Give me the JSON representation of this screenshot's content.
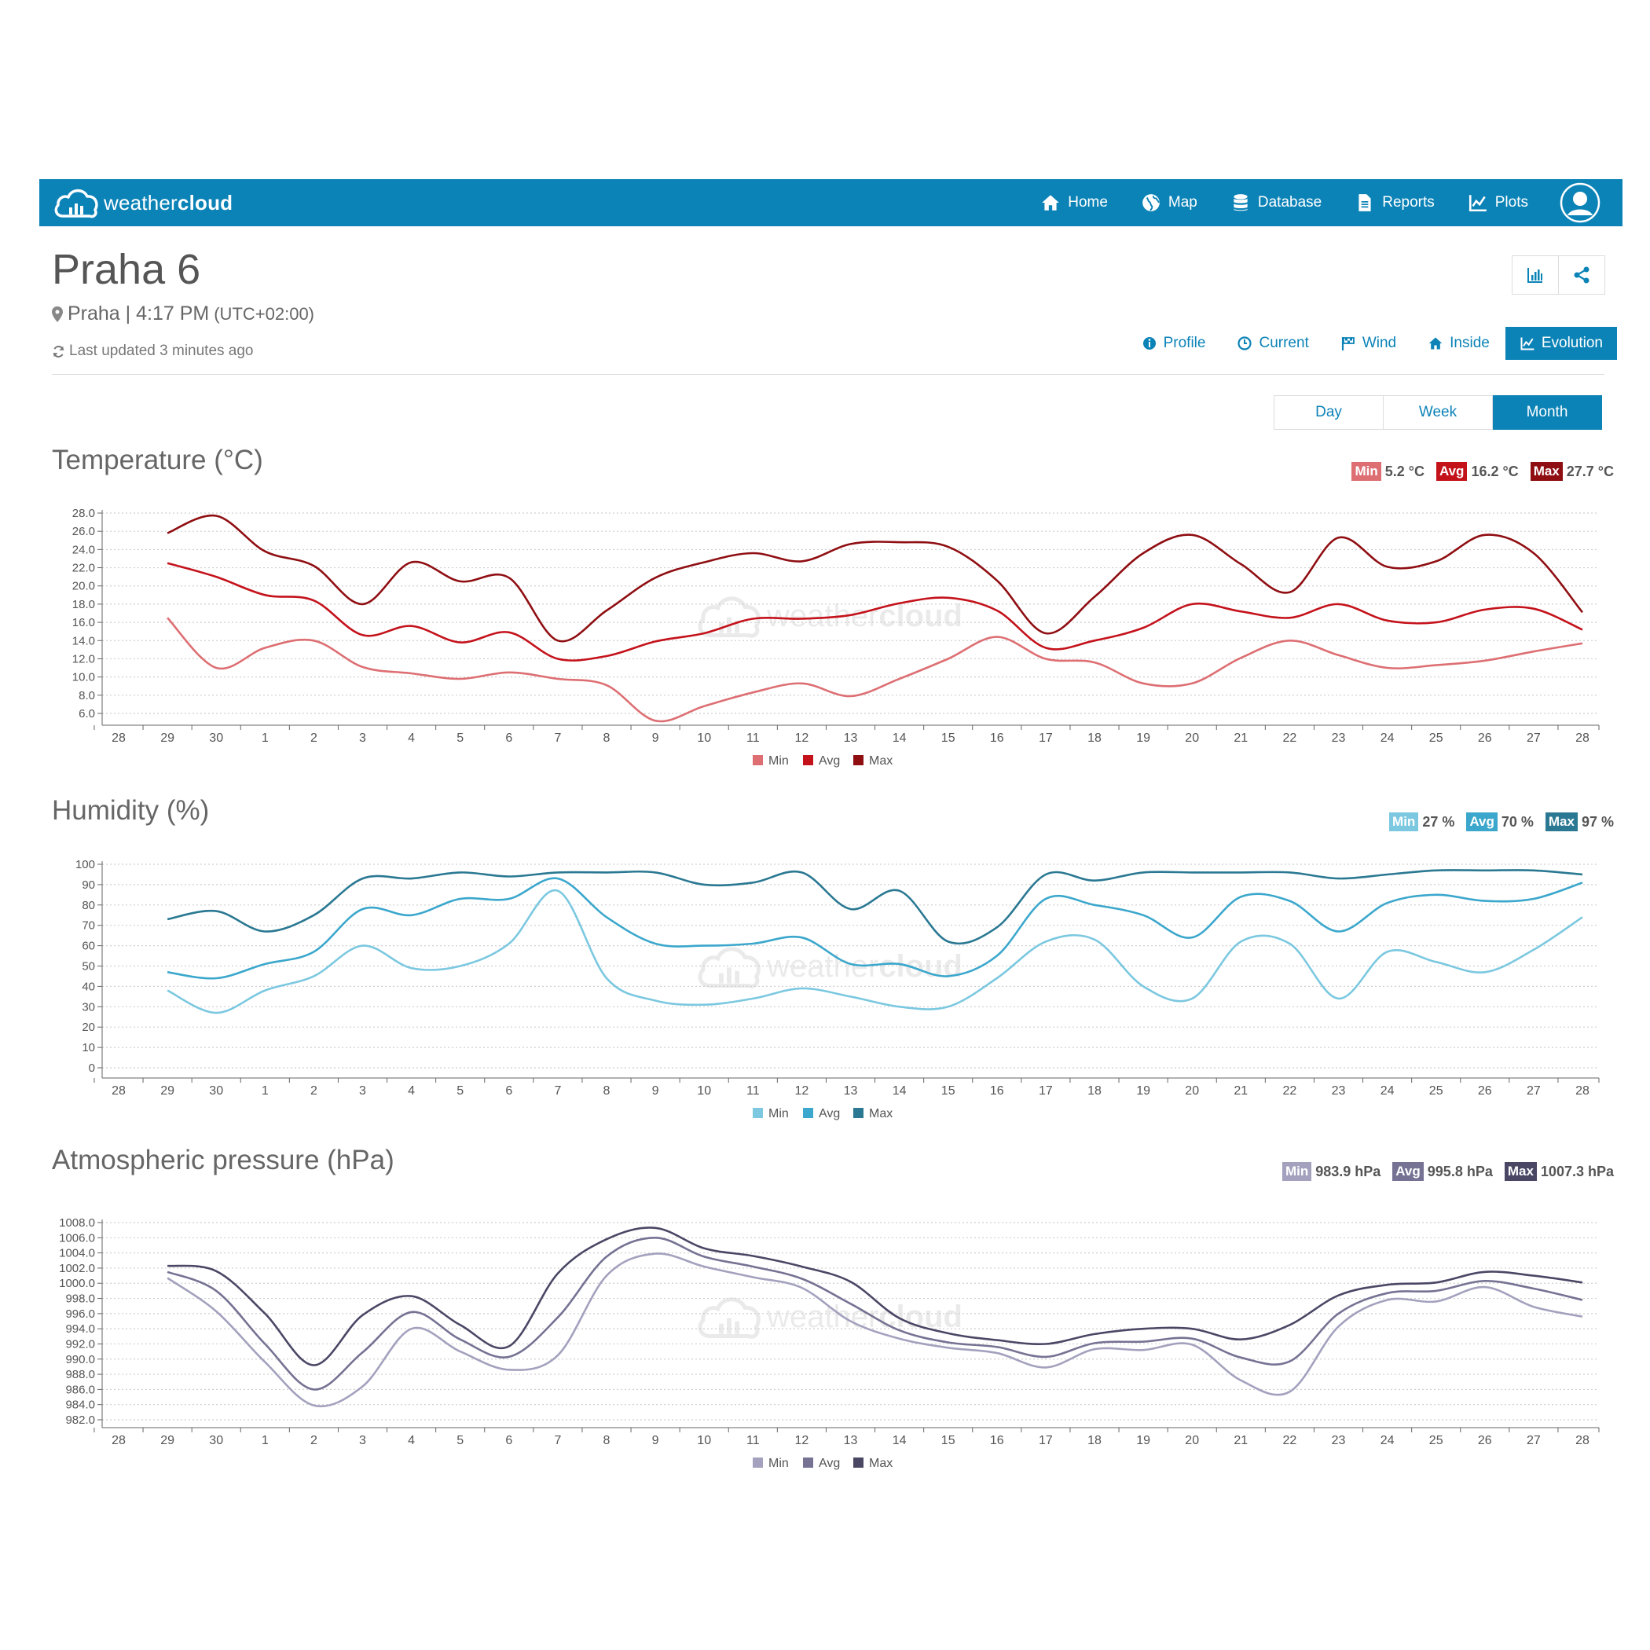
{
  "navbar": {
    "brand_light": "weather",
    "brand_bold": "cloud",
    "items": [
      {
        "label": "Home",
        "icon": "home-icon"
      },
      {
        "label": "Map",
        "icon": "globe-icon"
      },
      {
        "label": "Database",
        "icon": "database-icon"
      },
      {
        "label": "Reports",
        "icon": "document-icon"
      },
      {
        "label": "Plots",
        "icon": "line-chart-icon"
      }
    ],
    "avatar_icon": "user-icon"
  },
  "station": {
    "name": "Praha 6",
    "city": "Praha",
    "sep": "|",
    "time": "4:17 PM",
    "tz": "(UTC+02:00)",
    "updated": "Last updated 3 minutes ago"
  },
  "tabs": [
    {
      "label": "Profile",
      "icon": "info-icon"
    },
    {
      "label": "Current",
      "icon": "clock-icon"
    },
    {
      "label": "Wind",
      "icon": "flag-icon"
    },
    {
      "label": "Inside",
      "icon": "home-icon"
    },
    {
      "label": "Evolution",
      "icon": "line-chart-icon",
      "active": true
    }
  ],
  "periods": [
    {
      "label": "Day"
    },
    {
      "label": "Week"
    },
    {
      "label": "Month",
      "active": true
    }
  ],
  "watermark": {
    "light": "weather",
    "bold": "cloud"
  },
  "sections": [
    {
      "title": "Temperature (°C)",
      "badges": [
        {
          "label": "Min",
          "value": "5.2 °C",
          "color": "#dd6f73"
        },
        {
          "label": "Avg",
          "value": "16.2 °C",
          "color": "#c4121b"
        },
        {
          "label": "Max",
          "value": "27.7 °C",
          "color": "#8f0e12"
        }
      ]
    },
    {
      "title": "Humidity (%)",
      "badges": [
        {
          "label": "Min",
          "value": "27 %",
          "color": "#7bc8e0"
        },
        {
          "label": "Avg",
          "value": "70 %",
          "color": "#3ba7cc"
        },
        {
          "label": "Max",
          "value": "97 %",
          "color": "#2a7892"
        }
      ]
    },
    {
      "title": "Atmospheric pressure (hPa)",
      "badges": [
        {
          "label": "Min",
          "value": "983.9 hPa",
          "color": "#a3a1bd"
        },
        {
          "label": "Avg",
          "value": "995.8 hPa",
          "color": "#757293"
        },
        {
          "label": "Max",
          "value": "1007.3 hPa",
          "color": "#4a4765"
        }
      ]
    }
  ],
  "chart_data": [
    {
      "type": "line",
      "title": "Temperature (°C)",
      "categories": [
        "28",
        "29",
        "30",
        "1",
        "2",
        "3",
        "4",
        "5",
        "6",
        "7",
        "8",
        "9",
        "10",
        "11",
        "12",
        "13",
        "14",
        "15",
        "16",
        "17",
        "18",
        "19",
        "20",
        "21",
        "22",
        "23",
        "24",
        "25",
        "26",
        "27",
        "28"
      ],
      "y_ticks": [
        "6.0",
        "8.0",
        "10.0",
        "12.0",
        "14.0",
        "16.0",
        "18.0",
        "20.0",
        "22.0",
        "24.0",
        "26.0",
        "28.0"
      ],
      "ylim": [
        6,
        28
      ],
      "grid": true,
      "legend": "bottom-center",
      "series": [
        {
          "name": "Min",
          "color": "#dd6f73",
          "values": [
            null,
            16.5,
            11.0,
            13.2,
            14.0,
            11.1,
            10.4,
            9.8,
            10.5,
            9.8,
            9.1,
            5.2,
            6.8,
            8.3,
            9.3,
            7.9,
            9.8,
            12.0,
            14.4,
            12.0,
            11.6,
            9.3,
            9.3,
            12.1,
            14.0,
            12.4,
            11.0,
            11.3,
            11.8,
            12.8,
            13.7
          ]
        },
        {
          "name": "Avg",
          "color": "#c4121b",
          "values": [
            null,
            22.5,
            21.0,
            19.0,
            18.4,
            14.6,
            15.6,
            13.8,
            14.9,
            12.0,
            12.3,
            13.9,
            14.8,
            16.4,
            16.4,
            16.8,
            18.1,
            18.7,
            17.3,
            13.2,
            14.0,
            15.4,
            18.0,
            17.2,
            16.5,
            18.0,
            16.2,
            16.0,
            17.4,
            17.5,
            15.2
          ]
        },
        {
          "name": "Max",
          "color": "#8f0e12",
          "values": [
            null,
            25.8,
            27.7,
            23.8,
            22.2,
            18.0,
            22.6,
            20.5,
            20.9,
            14.0,
            17.3,
            20.9,
            22.6,
            23.6,
            22.7,
            24.6,
            24.8,
            24.3,
            20.6,
            14.8,
            18.8,
            23.6,
            25.6,
            22.4,
            19.3,
            25.3,
            22.1,
            22.7,
            25.6,
            23.6,
            17.1
          ]
        }
      ]
    },
    {
      "type": "line",
      "title": "Humidity (%)",
      "categories": [
        "28",
        "29",
        "30",
        "1",
        "2",
        "3",
        "4",
        "5",
        "6",
        "7",
        "8",
        "9",
        "10",
        "11",
        "12",
        "13",
        "14",
        "15",
        "16",
        "17",
        "18",
        "19",
        "20",
        "21",
        "22",
        "23",
        "24",
        "25",
        "26",
        "27",
        "28"
      ],
      "y_ticks": [
        "0",
        "10",
        "20",
        "30",
        "40",
        "50",
        "60",
        "70",
        "80",
        "90",
        "100"
      ],
      "ylim": [
        0,
        100
      ],
      "grid": true,
      "legend": "bottom-center",
      "series": [
        {
          "name": "Min",
          "color": "#7bc8e0",
          "values": [
            null,
            38,
            27,
            38,
            45,
            60,
            49,
            50,
            61,
            87,
            44,
            33,
            31,
            34,
            39,
            35,
            30,
            30,
            44,
            62,
            63,
            40,
            34,
            62,
            61,
            34,
            57,
            52,
            47,
            58,
            74
          ]
        },
        {
          "name": "Avg",
          "color": "#3ba7cc",
          "values": [
            null,
            47,
            44,
            51,
            57,
            78,
            75,
            83,
            83,
            93,
            74,
            61,
            60,
            61,
            64,
            51,
            51,
            45,
            55,
            83,
            80,
            75,
            64,
            84,
            82,
            67,
            81,
            85,
            82,
            83,
            91
          ]
        },
        {
          "name": "Max",
          "color": "#2a7892",
          "values": [
            null,
            73,
            77,
            67,
            75,
            93,
            93,
            96,
            94,
            96,
            96,
            96,
            90,
            91,
            96,
            78,
            87,
            62,
            69,
            95,
            92,
            96,
            96,
            96,
            96,
            93,
            95,
            97,
            97,
            97,
            95
          ]
        }
      ]
    },
    {
      "type": "line",
      "title": "Atmospheric pressure (hPa)",
      "categories": [
        "28",
        "29",
        "30",
        "1",
        "2",
        "3",
        "4",
        "5",
        "6",
        "7",
        "8",
        "9",
        "10",
        "11",
        "12",
        "13",
        "14",
        "15",
        "16",
        "17",
        "18",
        "19",
        "20",
        "21",
        "22",
        "23",
        "24",
        "25",
        "26",
        "27",
        "28"
      ],
      "y_ticks": [
        "982.0",
        "984.0",
        "986.0",
        "988.0",
        "990.0",
        "992.0",
        "994.0",
        "996.0",
        "998.0",
        "1000.0",
        "1002.0",
        "1004.0",
        "1006.0",
        "1008.0"
      ],
      "ylim": [
        982,
        1008
      ],
      "grid": true,
      "legend": "bottom-center",
      "series": [
        {
          "name": "Min",
          "color": "#a3a1bd",
          "values": [
            null,
            1000.7,
            996.3,
            989.6,
            983.9,
            986.4,
            994.0,
            991.0,
            988.6,
            990.5,
            1001.0,
            1003.9,
            1002.2,
            1000.8,
            999.4,
            995.0,
            992.7,
            991.5,
            990.8,
            988.9,
            991.3,
            991.2,
            991.9,
            987.2,
            985.7,
            994.3,
            997.8,
            997.6,
            999.5,
            996.9,
            995.6
          ]
        },
        {
          "name": "Avg",
          "color": "#757293",
          "values": [
            null,
            1001.5,
            999.0,
            992.0,
            986.0,
            990.9,
            996.2,
            992.6,
            990.3,
            995.5,
            1003.5,
            1006.0,
            1003.5,
            1002.2,
            1000.6,
            997.3,
            993.8,
            992.2,
            991.6,
            990.3,
            992.1,
            992.3,
            992.7,
            990.2,
            989.7,
            996.0,
            998.7,
            999.0,
            1000.3,
            999.3,
            997.8
          ]
        },
        {
          "name": "Max",
          "color": "#4a4765",
          "values": [
            null,
            1002.3,
            1001.6,
            996.0,
            989.2,
            995.8,
            998.3,
            994.5,
            991.7,
            1001.3,
            1005.8,
            1007.3,
            1004.6,
            1003.6,
            1002.2,
            1000.2,
            995.4,
            993.4,
            992.5,
            992.0,
            993.3,
            994.0,
            994.0,
            992.6,
            994.5,
            998.4,
            999.8,
            1000.1,
            1001.5,
            1001.0,
            1000.1
          ]
        }
      ]
    }
  ]
}
